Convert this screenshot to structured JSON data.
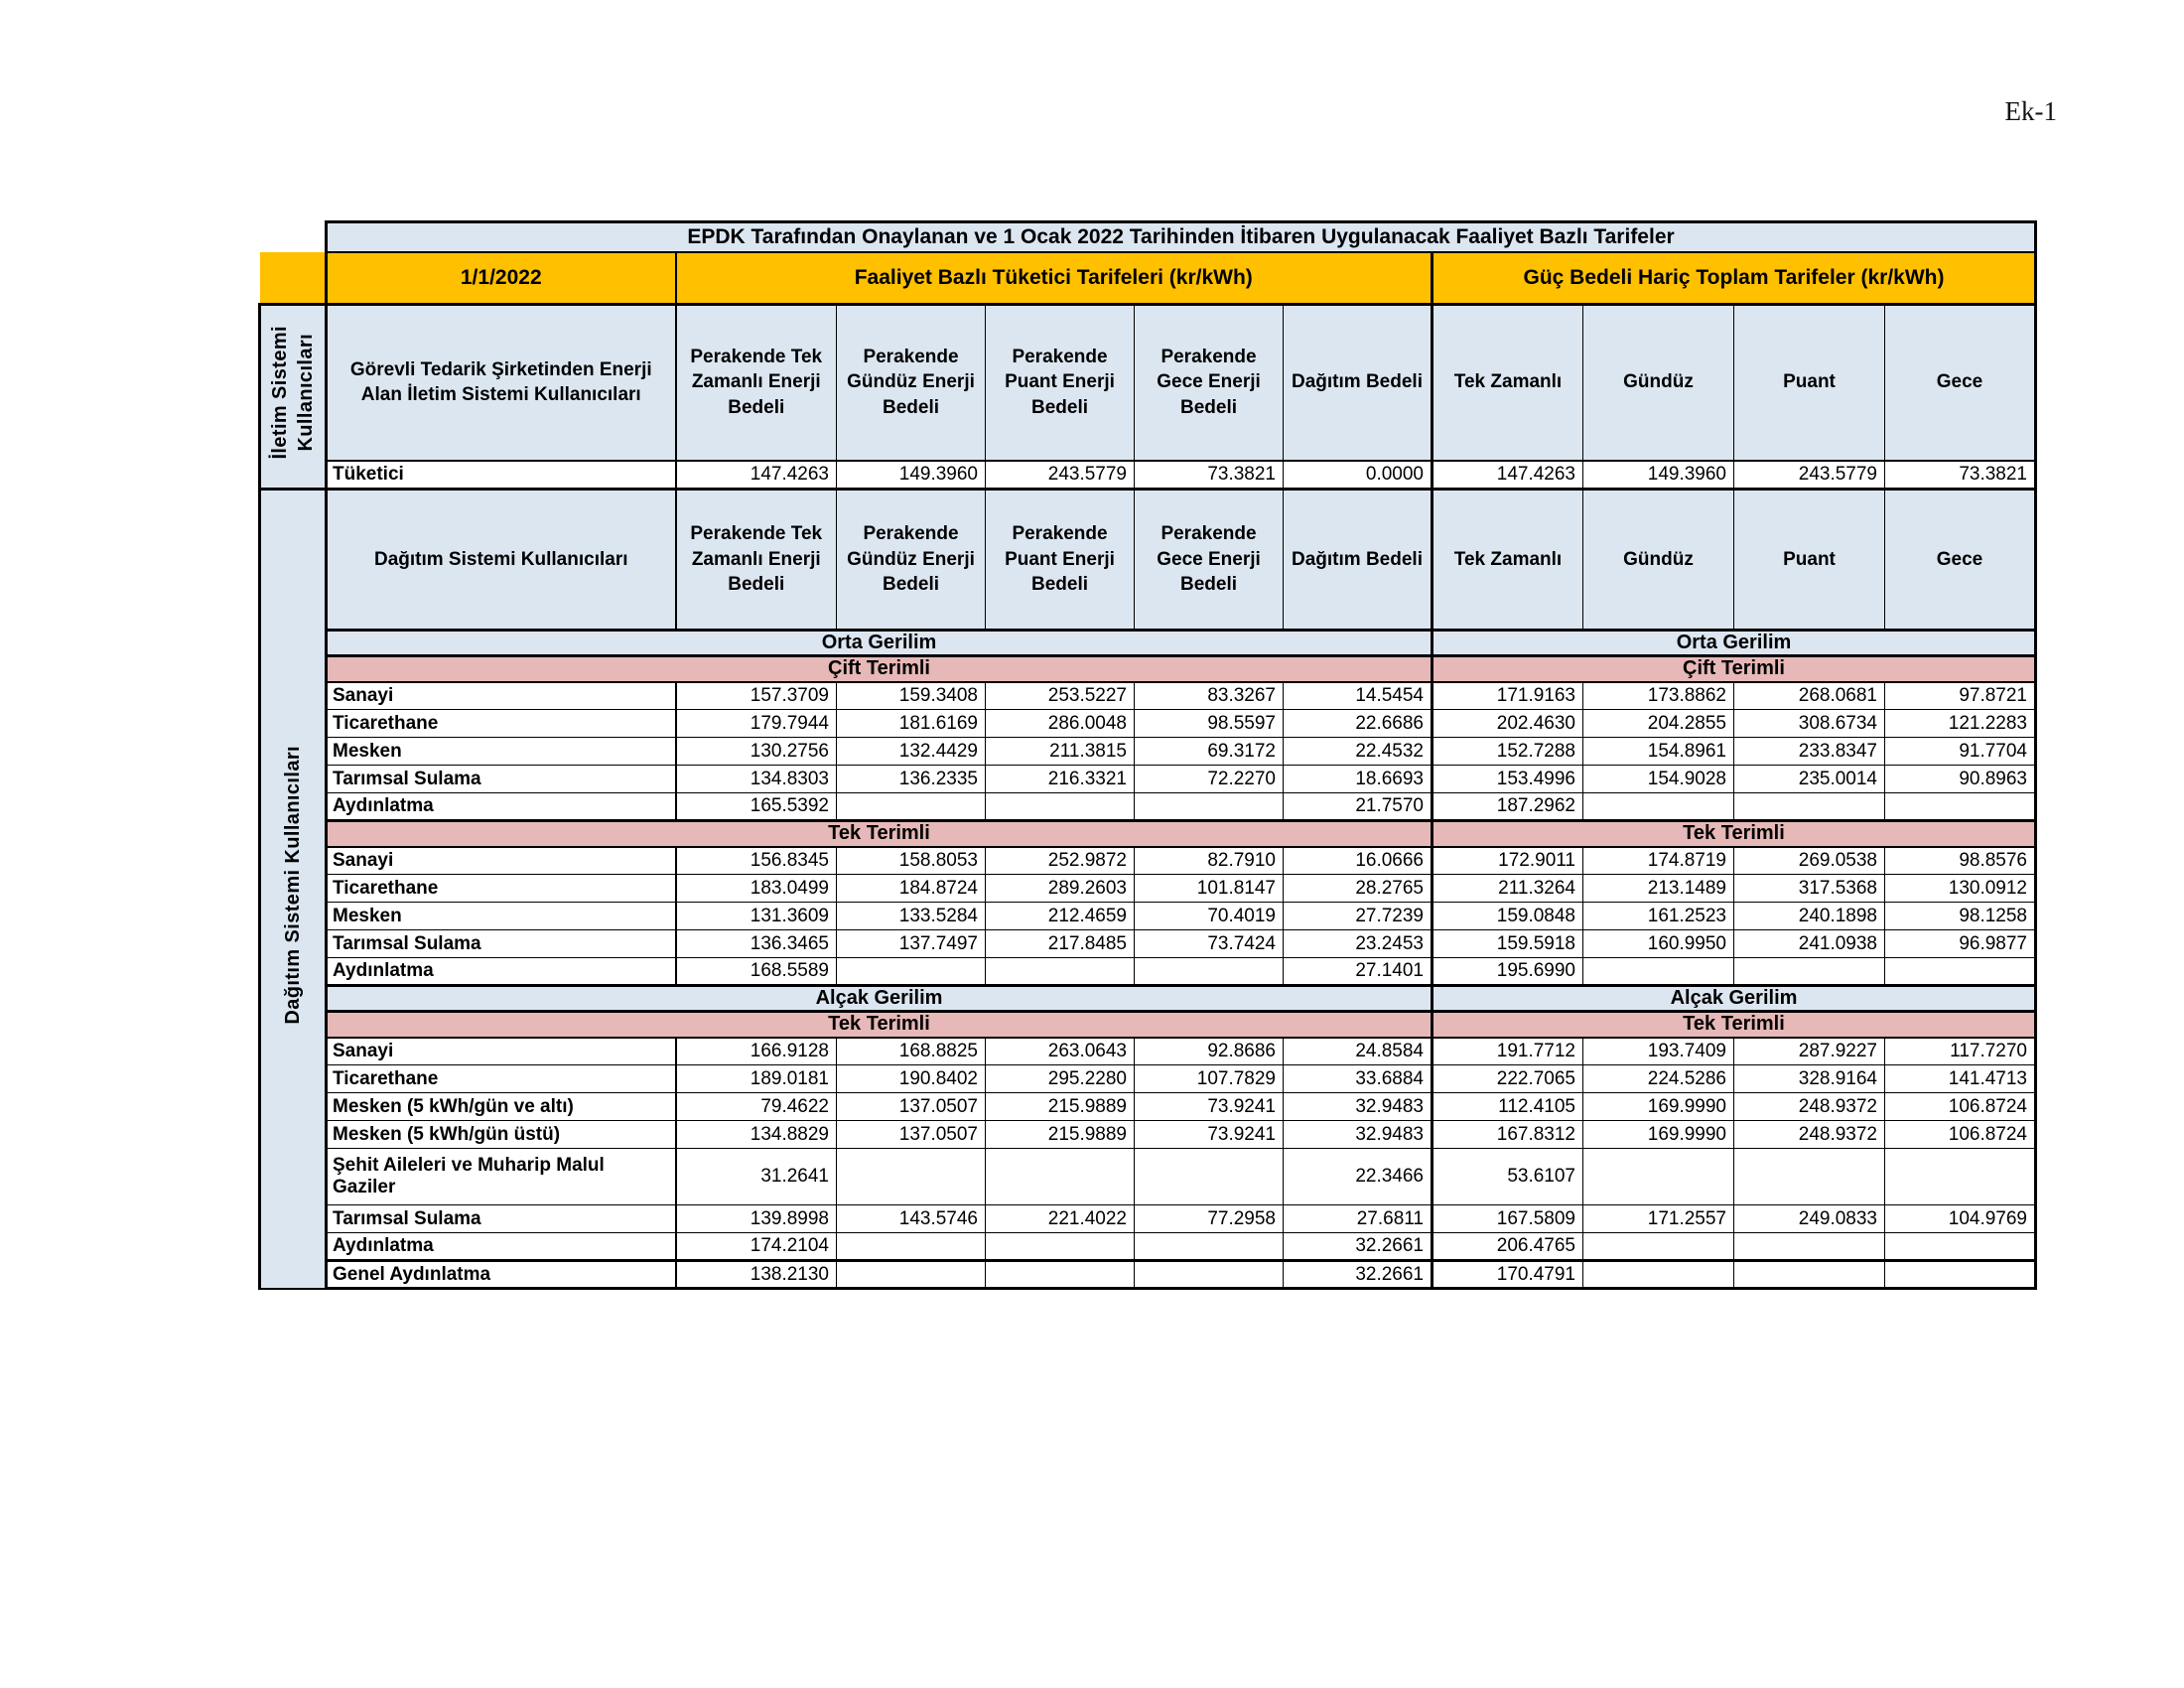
{
  "page": {
    "corner_label": "Ek-1"
  },
  "colors": {
    "header_blue": "#dce6f1",
    "group_orange": "#ffc000",
    "band_pink": "#e6b8b7",
    "border": "#000000",
    "cell_white": "#ffffff"
  },
  "table": {
    "title": "EPDK Tarafından Onaylanan ve 1 Ocak 2022 Tarihinden İtibaren Uygulanacak Faaliyet Bazlı Tarifeler",
    "date": "1/1/2022",
    "group_left": "Faaliyet Bazlı Tüketici Tarifeleri (kr/kWh)",
    "group_right": "Güç Bedeli Hariç Toplam Tarifeler (kr/kWh)",
    "sidebar_top": "İletim Sistemi\nKullanıcıları",
    "sidebar_bottom": "Dağıtım Sistemi Kullanıcıları",
    "headers": {
      "col_label_transmission": "Görevli Tedarik Şirketinden Enerji Alan İletim Sistemi Kullanıcıları",
      "col_label_distribution": "Dağıtım Sistemi Kullanıcıları",
      "left": [
        "Perakende Tek Zamanlı Enerji Bedeli",
        "Perakende Gündüz Enerji Bedeli",
        "Perakende Puant Enerji Bedeli",
        "Perakende Gece Enerji Bedeli",
        "Dağıtım Bedeli"
      ],
      "right": [
        "Tek Zamanlı",
        "Gündüz",
        "Puant",
        "Gece"
      ]
    },
    "transmission_row": {
      "label": "Tüketici",
      "left": [
        "147.4263",
        "149.3960",
        "243.5779",
        "73.3821",
        "0.0000"
      ],
      "right": [
        "147.4263",
        "149.3960",
        "243.5779",
        "73.3821"
      ]
    },
    "sections": [
      {
        "voltage": "Orta Gerilim",
        "term": "Çift Terimli",
        "rows": [
          {
            "label": "Sanayi",
            "left": [
              "157.3709",
              "159.3408",
              "253.5227",
              "83.3267",
              "14.5454"
            ],
            "right": [
              "171.9163",
              "173.8862",
              "268.0681",
              "97.8721"
            ]
          },
          {
            "label": "Ticarethane",
            "left": [
              "179.7944",
              "181.6169",
              "286.0048",
              "98.5597",
              "22.6686"
            ],
            "right": [
              "202.4630",
              "204.2855",
              "308.6734",
              "121.2283"
            ]
          },
          {
            "label": "Mesken",
            "left": [
              "130.2756",
              "132.4429",
              "211.3815",
              "69.3172",
              "22.4532"
            ],
            "right": [
              "152.7288",
              "154.8961",
              "233.8347",
              "91.7704"
            ]
          },
          {
            "label": "Tarımsal Sulama",
            "left": [
              "134.8303",
              "136.2335",
              "216.3321",
              "72.2270",
              "18.6693"
            ],
            "right": [
              "153.4996",
              "154.9028",
              "235.0014",
              "90.8963"
            ]
          },
          {
            "label": "Aydınlatma",
            "left": [
              "165.5392",
              "",
              "",
              "",
              "21.7570"
            ],
            "right": [
              "187.2962",
              "",
              "",
              ""
            ]
          }
        ]
      },
      {
        "voltage": null,
        "term": "Tek Terimli",
        "rows": [
          {
            "label": "Sanayi",
            "left": [
              "156.8345",
              "158.8053",
              "252.9872",
              "82.7910",
              "16.0666"
            ],
            "right": [
              "172.9011",
              "174.8719",
              "269.0538",
              "98.8576"
            ]
          },
          {
            "label": "Ticarethane",
            "left": [
              "183.0499",
              "184.8724",
              "289.2603",
              "101.8147",
              "28.2765"
            ],
            "right": [
              "211.3264",
              "213.1489",
              "317.5368",
              "130.0912"
            ]
          },
          {
            "label": "Mesken",
            "left": [
              "131.3609",
              "133.5284",
              "212.4659",
              "70.4019",
              "27.7239"
            ],
            "right": [
              "159.0848",
              "161.2523",
              "240.1898",
              "98.1258"
            ]
          },
          {
            "label": "Tarımsal Sulama",
            "left": [
              "136.3465",
              "137.7497",
              "217.8485",
              "73.7424",
              "23.2453"
            ],
            "right": [
              "159.5918",
              "160.9950",
              "241.0938",
              "96.9877"
            ]
          },
          {
            "label": "Aydınlatma",
            "left": [
              "168.5589",
              "",
              "",
              "",
              "27.1401"
            ],
            "right": [
              "195.6990",
              "",
              "",
              ""
            ]
          }
        ]
      },
      {
        "voltage": "Alçak Gerilim",
        "term": "Tek Terimli",
        "rows": [
          {
            "label": "Sanayi",
            "left": [
              "166.9128",
              "168.8825",
              "263.0643",
              "92.8686",
              "24.8584"
            ],
            "right": [
              "191.7712",
              "193.7409",
              "287.9227",
              "117.7270"
            ]
          },
          {
            "label": "Ticarethane",
            "left": [
              "189.0181",
              "190.8402",
              "295.2280",
              "107.7829",
              "33.6884"
            ],
            "right": [
              "222.7065",
              "224.5286",
              "328.9164",
              "141.4713"
            ]
          },
          {
            "label": "Mesken (5 kWh/gün ve altı)",
            "left": [
              "79.4622",
              "137.0507",
              "215.9889",
              "73.9241",
              "32.9483"
            ],
            "right": [
              "112.4105",
              "169.9990",
              "248.9372",
              "106.8724"
            ]
          },
          {
            "label": "Mesken (5 kWh/gün üstü)",
            "left": [
              "134.8829",
              "137.0507",
              "215.9889",
              "73.9241",
              "32.9483"
            ],
            "right": [
              "167.8312",
              "169.9990",
              "248.9372",
              "106.8724"
            ]
          },
          {
            "label": "Şehit Aileleri ve Muharip Malul Gaziler",
            "tall": true,
            "left": [
              "31.2641",
              "",
              "",
              "",
              "22.3466"
            ],
            "right": [
              "53.6107",
              "",
              "",
              ""
            ]
          },
          {
            "label": "Tarımsal Sulama",
            "left": [
              "139.8998",
              "143.5746",
              "221.4022",
              "77.2958",
              "27.6811"
            ],
            "right": [
              "167.5809",
              "171.2557",
              "249.0833",
              "104.9769"
            ]
          },
          {
            "label": "Aydınlatma",
            "left": [
              "174.2104",
              "",
              "",
              "",
              "32.2661"
            ],
            "right": [
              "206.4765",
              "",
              "",
              ""
            ]
          },
          {
            "label": "Genel Aydınlatma",
            "thick_top": true,
            "left": [
              "138.2130",
              "",
              "",
              "",
              "32.2661"
            ],
            "right": [
              "170.4791",
              "",
              "",
              ""
            ]
          }
        ]
      }
    ]
  }
}
